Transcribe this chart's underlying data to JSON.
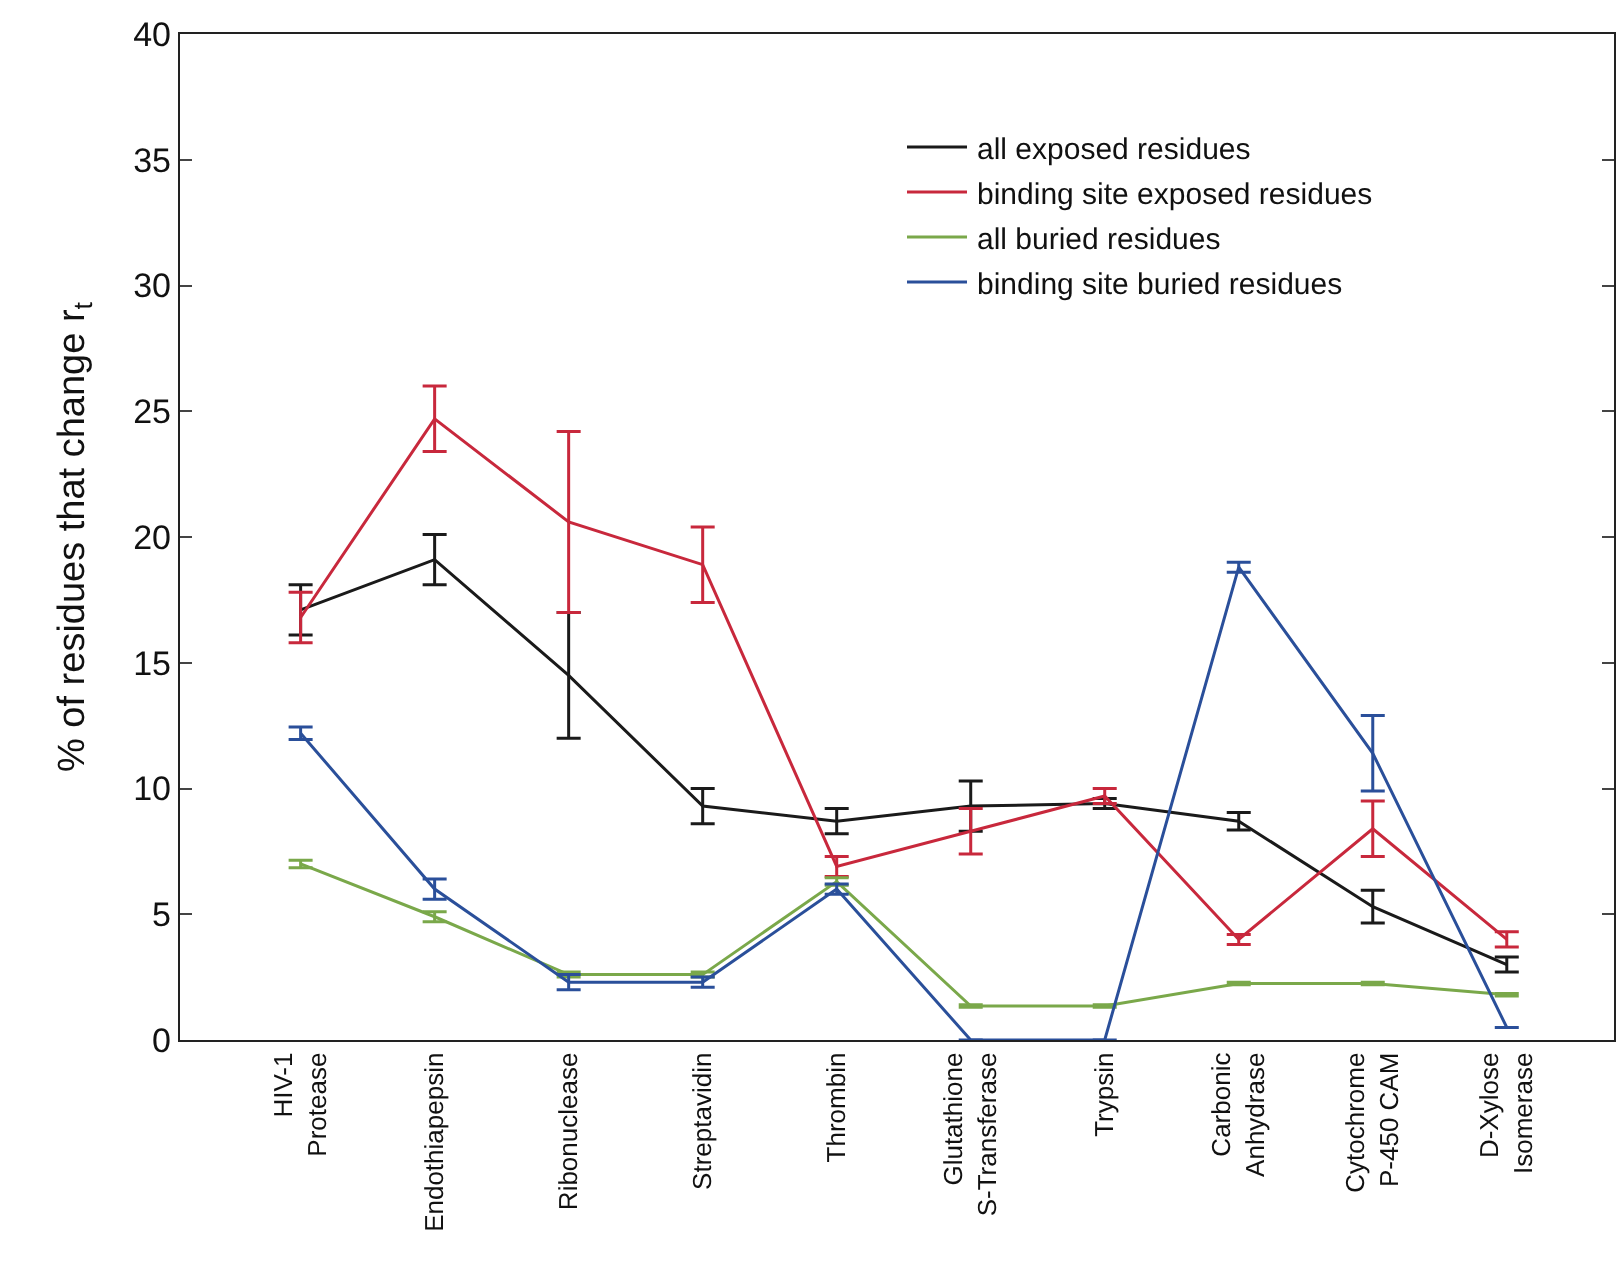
{
  "chart_data": {
    "type": "line",
    "ylabel": "% of residues that change r$_{t}$",
    "categories": [
      "HIV-1\nProtease",
      "Endothiapepsin",
      "Ribonuclease",
      "Streptavidin",
      "Thrombin",
      "Glutathione\nS-Transferase",
      "Trypsin",
      "Carbonic\nAnhydrase",
      "Cytochrome\nP-450 CAM",
      "D-Xylose\nIsomerase"
    ],
    "series": [
      {
        "name": "all exposed residues",
        "color": "#1a1a1a",
        "values": [
          17.1,
          19.1,
          14.5,
          9.3,
          8.7,
          9.3,
          9.4,
          8.7,
          5.3,
          3.0
        ],
        "errors": [
          1.0,
          1.0,
          2.5,
          0.7,
          0.5,
          1.0,
          0.2,
          0.35,
          0.65,
          0.3
        ]
      },
      {
        "name": "binding site exposed residues",
        "color": "#c8283c",
        "values": [
          16.8,
          24.7,
          20.6,
          18.9,
          6.9,
          8.3,
          9.7,
          4.0,
          8.4,
          4.0
        ],
        "errors": [
          1.0,
          1.3,
          3.6,
          1.5,
          0.4,
          0.9,
          0.3,
          0.2,
          1.1,
          0.3
        ]
      },
      {
        "name": "all buried residues",
        "color": "#7aa84a",
        "values": [
          7.0,
          4.9,
          2.6,
          2.6,
          6.3,
          1.35,
          1.35,
          2.25,
          2.25,
          1.8
        ],
        "errors": [
          0.15,
          0.2,
          0.1,
          0.1,
          0.15,
          0.05,
          0.05,
          0.05,
          0.05,
          0.05
        ]
      },
      {
        "name": "binding site buried residues",
        "color": "#2a4f9a",
        "values": [
          12.2,
          6.0,
          2.3,
          2.3,
          6.0,
          0,
          0,
          18.8,
          11.4,
          0.5
        ],
        "errors": [
          0.25,
          0.4,
          0.3,
          0.2,
          0.2,
          null,
          null,
          0.2,
          1.5,
          null
        ]
      }
    ],
    "ylim": [
      0,
      40
    ],
    "yticks": [
      0,
      5,
      10,
      15,
      20,
      25,
      30,
      35,
      40
    ],
    "grid": false,
    "legend": "top right",
    "line_style": "solid"
  }
}
